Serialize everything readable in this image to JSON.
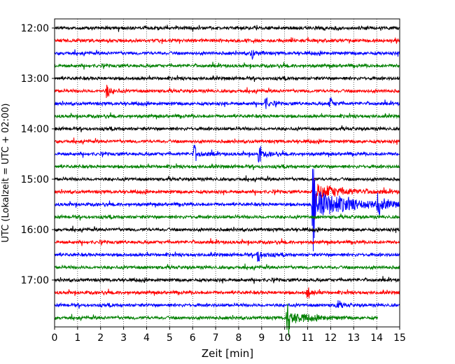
{
  "chart_data": {
    "type": "line",
    "title": "",
    "xlabel": "Zeit  [min]",
    "ylabel": "UTC (Lokalzeit = UTC + 02:00)",
    "xlim": [
      0,
      15
    ],
    "x_ticks": [
      0,
      1,
      2,
      3,
      4,
      5,
      6,
      7,
      8,
      9,
      10,
      11,
      12,
      13,
      14,
      15
    ],
    "x_tick_labels": [
      "0",
      "1",
      "2",
      "3",
      "4",
      "5",
      "6",
      "7",
      "8",
      "9",
      "10",
      "11",
      "12",
      "13",
      "14",
      "15"
    ],
    "y_tick_labels": [
      "12:00",
      "13:00",
      "14:00",
      "15:00",
      "16:00",
      "17:00"
    ],
    "grid": "vertical dotted at each minute",
    "color_cycle": [
      "#000000",
      "#ff0000",
      "#0000ff",
      "#008000"
    ],
    "series": [
      {
        "start": "12:00",
        "color": "#000000",
        "x_end": 15
      },
      {
        "start": "12:15",
        "color": "#ff0000",
        "x_end": 15
      },
      {
        "start": "12:30",
        "color": "#0000ff",
        "x_end": 15
      },
      {
        "start": "12:45",
        "color": "#008000",
        "x_end": 15
      },
      {
        "start": "13:00",
        "color": "#000000",
        "x_end": 15
      },
      {
        "start": "13:15",
        "color": "#ff0000",
        "x_end": 15
      },
      {
        "start": "13:30",
        "color": "#0000ff",
        "x_end": 15
      },
      {
        "start": "13:45",
        "color": "#008000",
        "x_end": 15
      },
      {
        "start": "14:00",
        "color": "#000000",
        "x_end": 15
      },
      {
        "start": "14:15",
        "color": "#ff0000",
        "x_end": 15
      },
      {
        "start": "14:30",
        "color": "#0000ff",
        "x_end": 15
      },
      {
        "start": "14:45",
        "color": "#008000",
        "x_end": 15
      },
      {
        "start": "15:00",
        "color": "#000000",
        "x_end": 15
      },
      {
        "start": "15:15",
        "color": "#ff0000",
        "x_end": 15
      },
      {
        "start": "15:30",
        "color": "#0000ff",
        "x_end": 15
      },
      {
        "start": "15:45",
        "color": "#008000",
        "x_end": 15
      },
      {
        "start": "16:00",
        "color": "#000000",
        "x_end": 15
      },
      {
        "start": "16:15",
        "color": "#ff0000",
        "x_end": 15
      },
      {
        "start": "16:30",
        "color": "#0000ff",
        "x_end": 15
      },
      {
        "start": "16:45",
        "color": "#008000",
        "x_end": 15
      },
      {
        "start": "17:00",
        "color": "#000000",
        "x_end": 15
      },
      {
        "start": "17:15",
        "color": "#ff0000",
        "x_end": 15
      },
      {
        "start": "17:30",
        "color": "#0000ff",
        "x_end": 15
      },
      {
        "start": "17:45",
        "color": "#008000",
        "x_end": 14.05
      }
    ],
    "events": [
      {
        "start": "12:30",
        "x": 8.6,
        "strength": 0.35
      },
      {
        "start": "13:15",
        "x": 2.3,
        "strength": 0.4
      },
      {
        "start": "13:30",
        "x": 9.2,
        "strength": 0.3
      },
      {
        "start": "13:30",
        "x": 12.0,
        "strength": 0.3
      },
      {
        "start": "14:30",
        "x": 6.1,
        "strength": 0.5
      },
      {
        "start": "14:30",
        "x": 8.9,
        "strength": 0.45
      },
      {
        "start": "15:15",
        "x": 11.3,
        "strength": 2.0
      },
      {
        "start": "15:30",
        "x": 11.25,
        "strength": 3.2
      },
      {
        "start": "15:30",
        "x": 14.1,
        "strength": 0.6
      },
      {
        "start": "16:30",
        "x": 8.85,
        "strength": 0.45
      },
      {
        "start": "17:15",
        "x": 11.0,
        "strength": 0.35
      },
      {
        "start": "17:30",
        "x": 12.3,
        "strength": 0.35
      },
      {
        "start": "17:45",
        "x": 10.15,
        "strength": 1.4
      }
    ]
  }
}
